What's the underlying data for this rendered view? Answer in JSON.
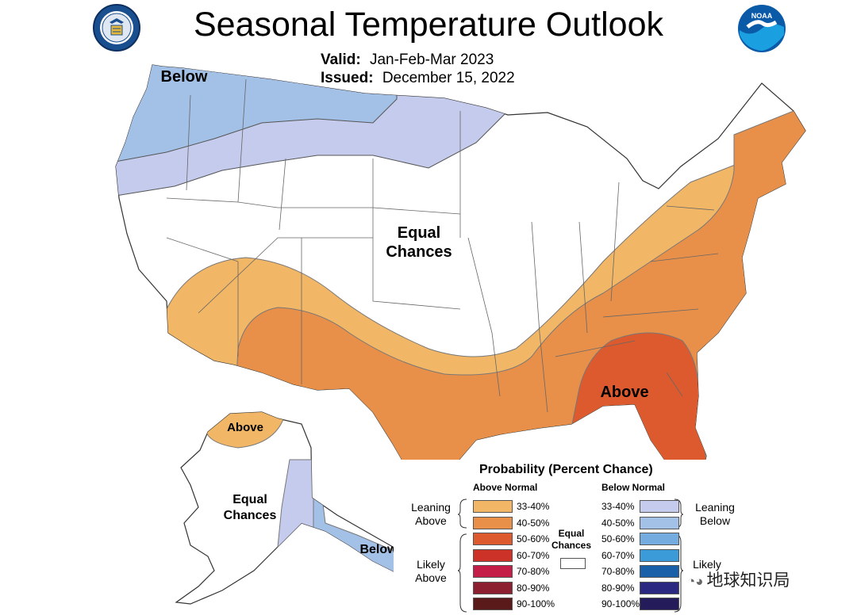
{
  "title": "Seasonal Temperature Outlook",
  "valid_label": "Valid:",
  "valid_value": "Jan-Feb-Mar 2023",
  "issued_label": "Issued:",
  "issued_value": "December 15, 2022",
  "map_labels": {
    "below_nw": "Below",
    "equal_chances_line1": "Equal",
    "equal_chances_line2": "Chances",
    "above_se": "Above",
    "above_alaska": "Above",
    "ak_equal_line1": "Equal",
    "ak_equal_line2": "Chances",
    "below_alaska": "Below"
  },
  "legend": {
    "title": "Probability (Percent Chance)",
    "above_header": "Above Normal",
    "below_header": "Below Normal",
    "leaning_above_1": "Leaning",
    "leaning_above_2": "Above",
    "likely_above_1": "Likely",
    "likely_above_2": "Above",
    "leaning_below_1": "Leaning",
    "leaning_below_2": "Below",
    "likely_below_1": "Likely",
    "equal_1": "Equal",
    "equal_2": "Chances",
    "above_items": [
      {
        "range": "33-40%",
        "color": "#f2b766"
      },
      {
        "range": "40-50%",
        "color": "#e8904a"
      },
      {
        "range": "50-60%",
        "color": "#dd5a2f"
      },
      {
        "range": "60-70%",
        "color": "#cc3228"
      },
      {
        "range": "70-80%",
        "color": "#c41e48"
      },
      {
        "range": "80-90%",
        "color": "#8c2030"
      },
      {
        "range": "90-100%",
        "color": "#5a1a1a"
      }
    ],
    "below_items": [
      {
        "range": "33-40%",
        "color": "#c5cbec"
      },
      {
        "range": "40-50%",
        "color": "#a3c0e6"
      },
      {
        "range": "50-60%",
        "color": "#74ace0"
      },
      {
        "range": "60-70%",
        "color": "#3b9ad8"
      },
      {
        "range": "70-80%",
        "color": "#1a60a8"
      },
      {
        "range": "80-90%",
        "color": "#2a2880"
      },
      {
        "range": "90-100%",
        "color": "#241c5a"
      }
    ],
    "equal_color": "#ffffff"
  },
  "watermark": "地球知识局",
  "logos": {
    "left": "department-of-commerce-seal",
    "right": "noaa-logo"
  }
}
